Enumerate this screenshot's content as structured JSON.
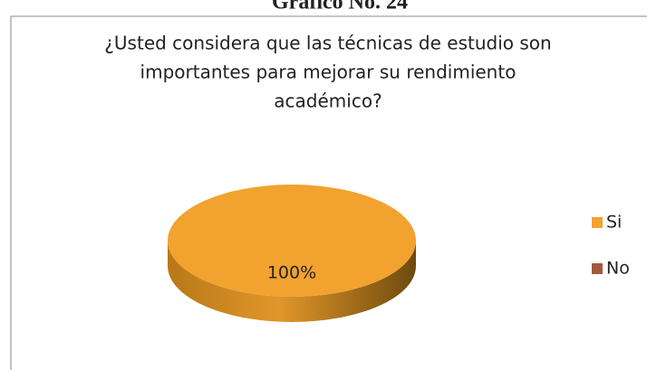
{
  "heading": "Gráfico No. 24",
  "chart_data": {
    "type": "pie",
    "title": [
      "¿Usted considera que las técnicas de estudio son",
      "importantes para mejorar su rendimiento",
      "académico?"
    ],
    "categories": [
      "Si",
      "No"
    ],
    "values": [
      100,
      0
    ],
    "value_labels": [
      "100%",
      null
    ],
    "colors": [
      "#f2a22e",
      "#a35a3d"
    ],
    "legend": "right"
  }
}
